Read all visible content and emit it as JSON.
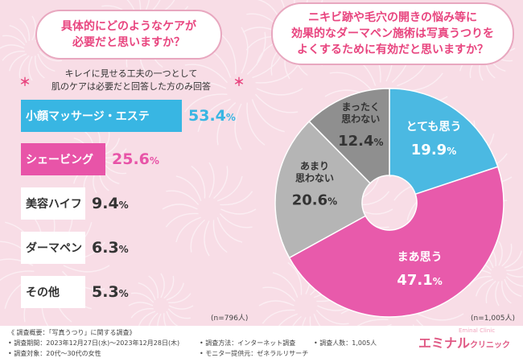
{
  "colors": {
    "accent_pink": "#e8457f",
    "bar_pink": "#e854a8",
    "bar_cyan": "#38b6e3",
    "bar_white": "#ffffff",
    "pie_cyan": "#4bb9e2",
    "pie_pink": "#e85aab",
    "pie_lightgray": "#b5b5b5",
    "pie_gray": "#8f8f8f"
  },
  "left_panel": {
    "question": "具体的にどのようなケアが\n必要だと思いますか？",
    "note_star": "＊",
    "note": "キレイに見せる工夫の一つとして\n肌のケアは必要だと回答した方のみ回答",
    "n": "(n=796人)"
  },
  "right_panel": {
    "question": "ニキビ跡や毛穴の開きの悩み等に\n効果的なダーマペン施術は写真うつりを\nよくするために有効だと思いますか？",
    "n": "(n=1,005人)"
  },
  "chart_data": [
    {
      "type": "bar",
      "orientation": "horizontal",
      "categories": [
        "小顔マッサージ・エステ",
        "シェービング",
        "美容ハイフ",
        "ダーマペン",
        "その他"
      ],
      "values": [
        53.4,
        25.6,
        9.4,
        6.3,
        5.3
      ],
      "value_labels": [
        {
          "num": "53.4",
          "pct": "%"
        },
        {
          "num": "25.6",
          "pct": "%"
        },
        {
          "num": "9.4",
          "pct": "%"
        },
        {
          "num": "6.3",
          "pct": "%"
        },
        {
          "num": "5.3",
          "pct": "%"
        }
      ],
      "bar_colors": [
        "#38b6e3",
        "#e854a8",
        "#ffffff",
        "#ffffff",
        "#ffffff"
      ],
      "value_colors": [
        "#38b6e3",
        "#e854a8",
        "#333333",
        "#333333",
        "#333333"
      ],
      "label_colors": [
        "#ffffff",
        "#ffffff",
        "#333333",
        "#333333",
        "#333333"
      ],
      "unit": "%"
    },
    {
      "type": "pie",
      "donut": true,
      "slices": [
        {
          "label": "とても思う",
          "value": 19.9,
          "value_label": "19.9",
          "color": "#4bb9e2",
          "text_color": "#ffffff"
        },
        {
          "label": "まあ思う",
          "value": 47.1,
          "value_label": "47.1",
          "color": "#e85aab",
          "text_color": "#ffffff"
        },
        {
          "label": "あまり\n思わない",
          "value": 20.6,
          "value_label": "20.6",
          "color": "#b5b5b5",
          "text_color": "#333333"
        },
        {
          "label": "まったく\n思わない",
          "value": 12.4,
          "value_label": "12.4",
          "color": "#8f8f8f",
          "text_color": "#333333"
        }
      ],
      "pct_label": "%",
      "start_angle": "top",
      "direction": "clockwise"
    }
  ],
  "footer": {
    "overview": "《 調査概要：「写真うつり」に関する調査》",
    "period": "• 調査期間：2023年12月27日(水)〜2023年12月28日(木)",
    "target": "• 調査対象：20代〜30代の女性",
    "method": "• 調査方法：インターネット調査",
    "provider": "• モニター提供元：ゼネラルリサーチ",
    "count": "• 調査人数：1,005人",
    "brand_main": "エミナル",
    "brand_sub": "クリニック",
    "brand_small": "Eminal Clinic"
  }
}
